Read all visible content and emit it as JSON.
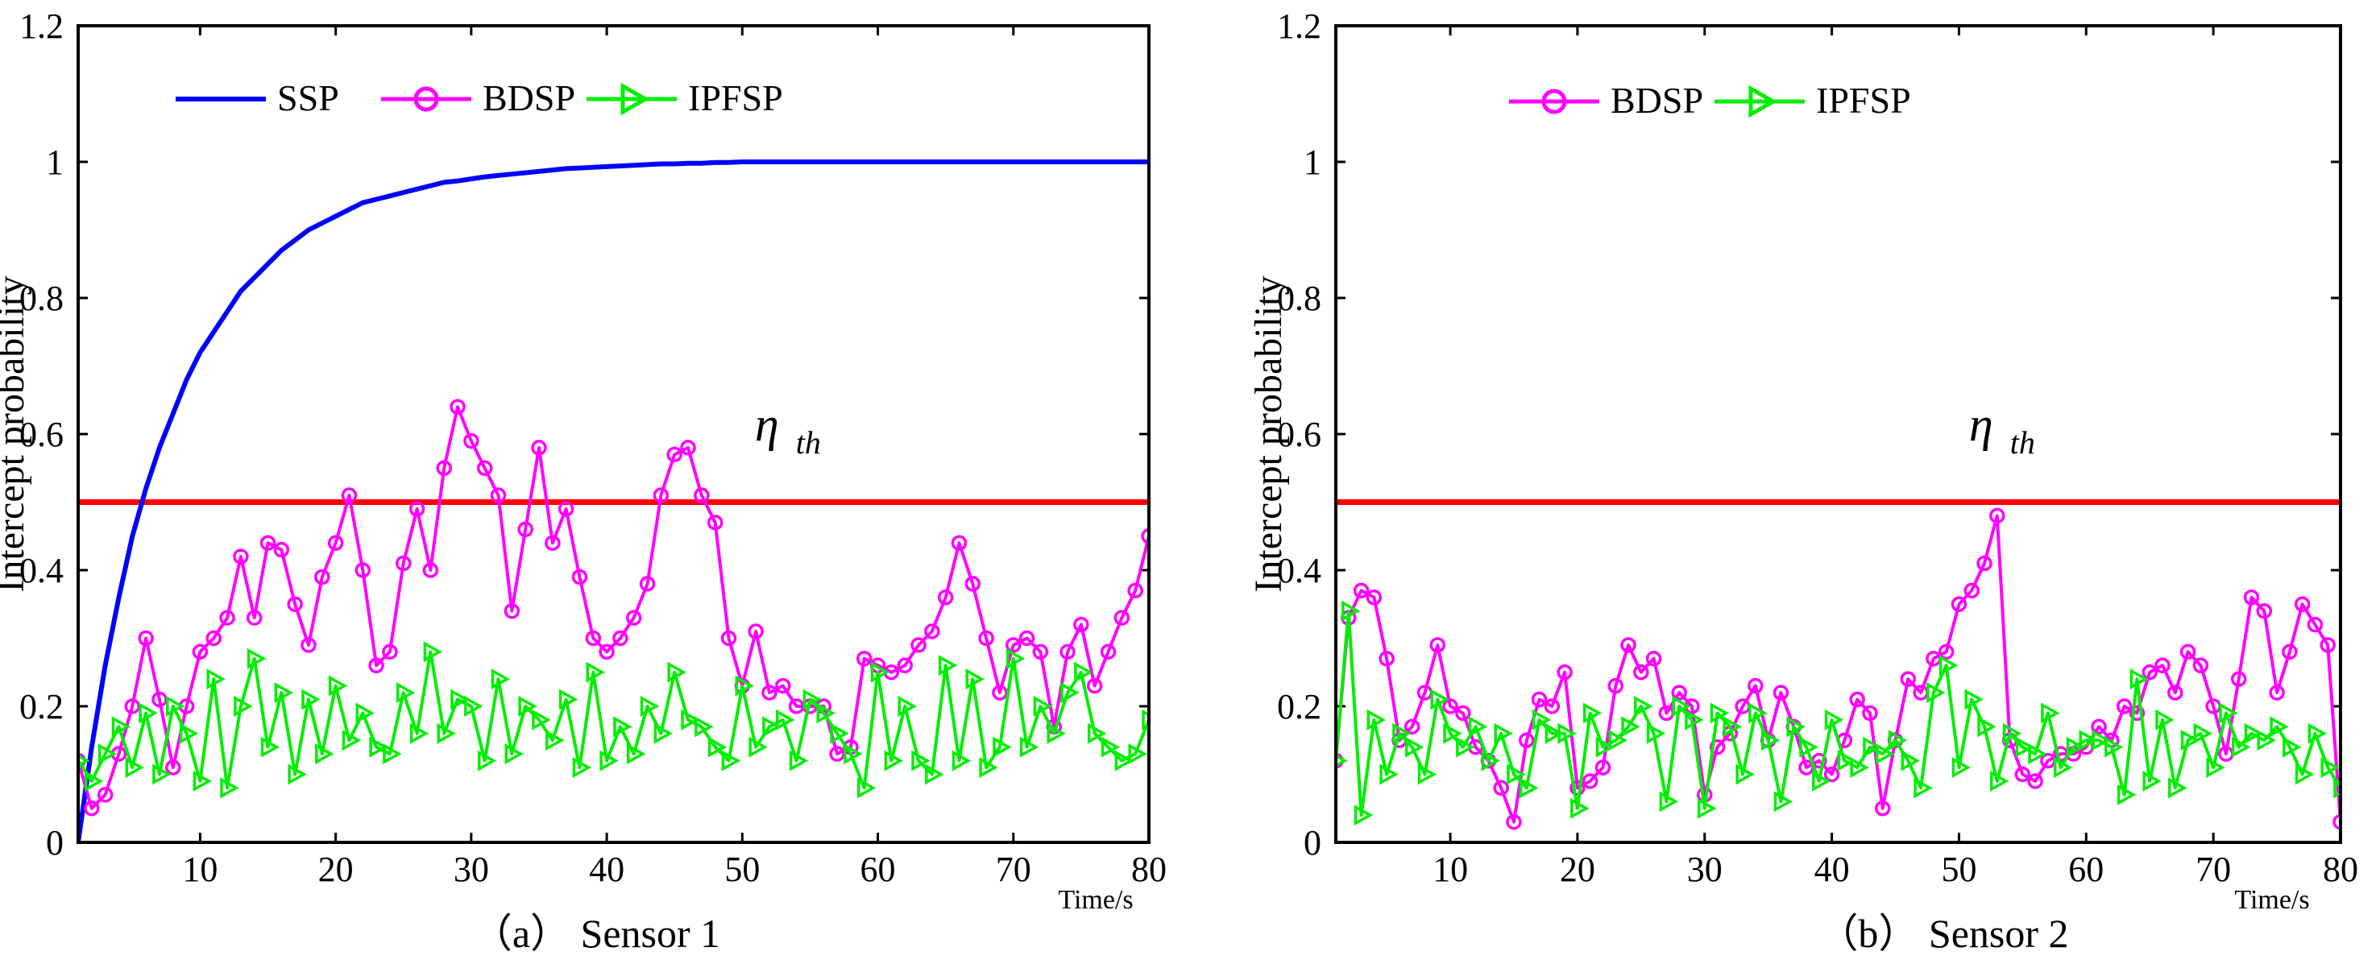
{
  "chart_data": [
    {
      "type": "line",
      "panel": "a",
      "caption": "（a） Sensor 1",
      "xlabel": "Time/s",
      "ylabel": "Intercept probability",
      "xlim": [
        1,
        80
      ],
      "ylim": [
        0,
        1.2
      ],
      "xticks": [
        "10",
        "20",
        "30",
        "40",
        "50",
        "60",
        "70",
        "80"
      ],
      "yticks": [
        "0",
        "0.2",
        "0.4",
        "0.6",
        "0.8",
        "1",
        "1.2"
      ],
      "threshold": {
        "value": 0.5,
        "label": "η",
        "sub": "th",
        "color": "#ff0000",
        "label_x": 53,
        "label_y": 0.6
      },
      "legend": [
        "SSP",
        "BDSP",
        "IPFSP"
      ],
      "series": [
        {
          "name": "SSP",
          "color": "#0000ff",
          "marker": "none",
          "x": [
            1,
            2,
            3,
            4,
            5,
            6,
            7,
            8,
            9,
            10,
            11,
            12,
            13,
            14,
            15,
            16,
            17,
            18,
            19,
            20,
            21,
            22,
            23,
            24,
            25,
            26,
            27,
            28,
            29,
            30,
            31,
            32,
            33,
            34,
            35,
            36,
            37,
            38,
            39,
            40,
            41,
            42,
            43,
            44,
            45,
            46,
            47,
            48,
            49,
            50,
            52,
            55,
            60,
            65,
            70,
            75,
            80
          ],
          "y": [
            0.0,
            0.14,
            0.26,
            0.36,
            0.45,
            0.52,
            0.58,
            0.63,
            0.68,
            0.72,
            0.75,
            0.78,
            0.81,
            0.83,
            0.85,
            0.87,
            0.885,
            0.9,
            0.91,
            0.92,
            0.93,
            0.94,
            0.945,
            0.95,
            0.955,
            0.96,
            0.965,
            0.97,
            0.972,
            0.975,
            0.978,
            0.98,
            0.982,
            0.984,
            0.986,
            0.988,
            0.99,
            0.991,
            0.992,
            0.993,
            0.994,
            0.995,
            0.996,
            0.997,
            0.997,
            0.998,
            0.998,
            0.999,
            0.999,
            1.0,
            1.0,
            1.0,
            1.0,
            1.0,
            1.0,
            1.0,
            1.0
          ]
        },
        {
          "name": "BDSP",
          "color": "#ff00ff",
          "marker": "circle",
          "x": [
            1,
            2,
            3,
            4,
            5,
            6,
            7,
            8,
            9,
            10,
            11,
            12,
            13,
            14,
            15,
            16,
            17,
            18,
            19,
            20,
            21,
            22,
            23,
            24,
            25,
            26,
            27,
            28,
            29,
            30,
            31,
            32,
            33,
            34,
            35,
            36,
            37,
            38,
            39,
            40,
            41,
            42,
            43,
            44,
            45,
            46,
            47,
            48,
            49,
            50,
            51,
            52,
            53,
            54,
            55,
            56,
            57,
            58,
            59,
            60,
            61,
            62,
            63,
            64,
            65,
            66,
            67,
            68,
            69,
            70,
            71,
            72,
            73,
            74,
            75,
            76,
            77,
            78,
            79,
            80
          ],
          "y": [
            0.12,
            0.05,
            0.07,
            0.13,
            0.2,
            0.3,
            0.21,
            0.11,
            0.2,
            0.28,
            0.3,
            0.33,
            0.42,
            0.33,
            0.44,
            0.43,
            0.35,
            0.29,
            0.39,
            0.44,
            0.51,
            0.4,
            0.26,
            0.28,
            0.41,
            0.49,
            0.4,
            0.55,
            0.64,
            0.59,
            0.55,
            0.51,
            0.34,
            0.46,
            0.58,
            0.44,
            0.49,
            0.39,
            0.3,
            0.28,
            0.3,
            0.33,
            0.38,
            0.51,
            0.57,
            0.58,
            0.51,
            0.47,
            0.3,
            0.23,
            0.31,
            0.22,
            0.23,
            0.2,
            0.2,
            0.2,
            0.13,
            0.14,
            0.27,
            0.26,
            0.25,
            0.26,
            0.29,
            0.31,
            0.36,
            0.44,
            0.38,
            0.3,
            0.22,
            0.29,
            0.3,
            0.28,
            0.17,
            0.28,
            0.32,
            0.23,
            0.28,
            0.33,
            0.37,
            0.45
          ]
        },
        {
          "name": "IPFSP",
          "color": "#00ee00",
          "marker": "triangle-right",
          "x": [
            1,
            2,
            3,
            4,
            5,
            6,
            7,
            8,
            9,
            10,
            11,
            12,
            13,
            14,
            15,
            16,
            17,
            18,
            19,
            20,
            21,
            22,
            23,
            24,
            25,
            26,
            27,
            28,
            29,
            30,
            31,
            32,
            33,
            34,
            35,
            36,
            37,
            38,
            39,
            40,
            41,
            42,
            43,
            44,
            45,
            46,
            47,
            48,
            49,
            50,
            51,
            52,
            53,
            54,
            55,
            56,
            57,
            58,
            59,
            60,
            61,
            62,
            63,
            64,
            65,
            66,
            67,
            68,
            69,
            70,
            71,
            72,
            73,
            74,
            75,
            76,
            77,
            78,
            79,
            80
          ],
          "y": [
            0.12,
            0.09,
            0.13,
            0.17,
            0.11,
            0.19,
            0.1,
            0.2,
            0.16,
            0.09,
            0.24,
            0.08,
            0.2,
            0.27,
            0.14,
            0.22,
            0.1,
            0.21,
            0.13,
            0.23,
            0.15,
            0.19,
            0.14,
            0.13,
            0.22,
            0.16,
            0.28,
            0.16,
            0.21,
            0.2,
            0.12,
            0.24,
            0.13,
            0.2,
            0.18,
            0.15,
            0.21,
            0.11,
            0.25,
            0.12,
            0.17,
            0.13,
            0.2,
            0.16,
            0.25,
            0.18,
            0.17,
            0.14,
            0.12,
            0.23,
            0.14,
            0.17,
            0.18,
            0.12,
            0.21,
            0.19,
            0.16,
            0.13,
            0.08,
            0.25,
            0.12,
            0.2,
            0.12,
            0.1,
            0.26,
            0.12,
            0.24,
            0.11,
            0.14,
            0.27,
            0.14,
            0.2,
            0.16,
            0.22,
            0.25,
            0.16,
            0.14,
            0.12,
            0.13,
            0.18
          ]
        }
      ]
    },
    {
      "type": "line",
      "panel": "b",
      "caption": "（b） Sensor 2",
      "xlabel": "Time/s",
      "ylabel": "Intercept probability",
      "xlim": [
        1,
        80
      ],
      "ylim": [
        0,
        1.2
      ],
      "xticks": [
        "10",
        "20",
        "30",
        "40",
        "50",
        "60",
        "70",
        "80"
      ],
      "yticks": [
        "0",
        "0.2",
        "0.4",
        "0.6",
        "0.8",
        "1",
        "1.2"
      ],
      "threshold": {
        "value": 0.5,
        "label": "η",
        "sub": "th",
        "color": "#ff0000",
        "label_x": 53,
        "label_y": 0.6
      },
      "legend": [
        "BDSP",
        "IPFSP"
      ],
      "series": [
        {
          "name": "BDSP",
          "color": "#ff00ff",
          "marker": "circle",
          "x": [
            1,
            2,
            3,
            4,
            5,
            6,
            7,
            8,
            9,
            10,
            11,
            12,
            13,
            14,
            15,
            16,
            17,
            18,
            19,
            20,
            21,
            22,
            23,
            24,
            25,
            26,
            27,
            28,
            29,
            30,
            31,
            32,
            33,
            34,
            35,
            36,
            37,
            38,
            39,
            40,
            41,
            42,
            43,
            44,
            45,
            46,
            47,
            48,
            49,
            50,
            51,
            52,
            53,
            54,
            55,
            56,
            57,
            58,
            59,
            60,
            61,
            62,
            63,
            64,
            65,
            66,
            67,
            68,
            69,
            70,
            71,
            72,
            73,
            74,
            75,
            76,
            77,
            78,
            79,
            80
          ],
          "y": [
            0.12,
            0.33,
            0.37,
            0.36,
            0.27,
            0.15,
            0.17,
            0.22,
            0.29,
            0.2,
            0.19,
            0.14,
            0.12,
            0.08,
            0.03,
            0.15,
            0.21,
            0.2,
            0.25,
            0.08,
            0.09,
            0.11,
            0.23,
            0.29,
            0.25,
            0.27,
            0.19,
            0.22,
            0.2,
            0.07,
            0.14,
            0.16,
            0.2,
            0.23,
            0.15,
            0.22,
            0.17,
            0.11,
            0.12,
            0.1,
            0.15,
            0.21,
            0.19,
            0.05,
            0.15,
            0.24,
            0.22,
            0.27,
            0.28,
            0.35,
            0.37,
            0.41,
            0.48,
            0.15,
            0.1,
            0.09,
            0.12,
            0.13,
            0.13,
            0.14,
            0.17,
            0.15,
            0.2,
            0.19,
            0.25,
            0.26,
            0.22,
            0.28,
            0.26,
            0.2,
            0.13,
            0.24,
            0.36,
            0.34,
            0.22,
            0.28,
            0.35,
            0.32,
            0.29,
            0.03
          ]
        },
        {
          "name": "IPFSP",
          "color": "#00ee00",
          "marker": "triangle-right",
          "x": [
            1,
            2,
            3,
            4,
            5,
            6,
            7,
            8,
            9,
            10,
            11,
            12,
            13,
            14,
            15,
            16,
            17,
            18,
            19,
            20,
            21,
            22,
            23,
            24,
            25,
            26,
            27,
            28,
            29,
            30,
            31,
            32,
            33,
            34,
            35,
            36,
            37,
            38,
            39,
            40,
            41,
            42,
            43,
            44,
            45,
            46,
            47,
            48,
            49,
            50,
            51,
            52,
            53,
            54,
            55,
            56,
            57,
            58,
            59,
            60,
            61,
            62,
            63,
            64,
            65,
            66,
            67,
            68,
            69,
            70,
            71,
            72,
            73,
            74,
            75,
            76,
            77,
            78,
            79,
            80
          ],
          "y": [
            0.12,
            0.34,
            0.04,
            0.18,
            0.1,
            0.16,
            0.14,
            0.1,
            0.21,
            0.16,
            0.14,
            0.17,
            0.12,
            0.16,
            0.1,
            0.08,
            0.18,
            0.16,
            0.16,
            0.05,
            0.19,
            0.14,
            0.15,
            0.17,
            0.2,
            0.16,
            0.06,
            0.2,
            0.18,
            0.05,
            0.19,
            0.17,
            0.1,
            0.19,
            0.15,
            0.06,
            0.17,
            0.14,
            0.09,
            0.18,
            0.12,
            0.11,
            0.14,
            0.13,
            0.15,
            0.12,
            0.08,
            0.22,
            0.26,
            0.11,
            0.21,
            0.17,
            0.09,
            0.16,
            0.14,
            0.13,
            0.19,
            0.11,
            0.14,
            0.15,
            0.15,
            0.14,
            0.07,
            0.24,
            0.09,
            0.18,
            0.08,
            0.15,
            0.16,
            0.11,
            0.19,
            0.14,
            0.16,
            0.15,
            0.17,
            0.14,
            0.1,
            0.16,
            0.11,
            0.08
          ]
        }
      ]
    }
  ]
}
